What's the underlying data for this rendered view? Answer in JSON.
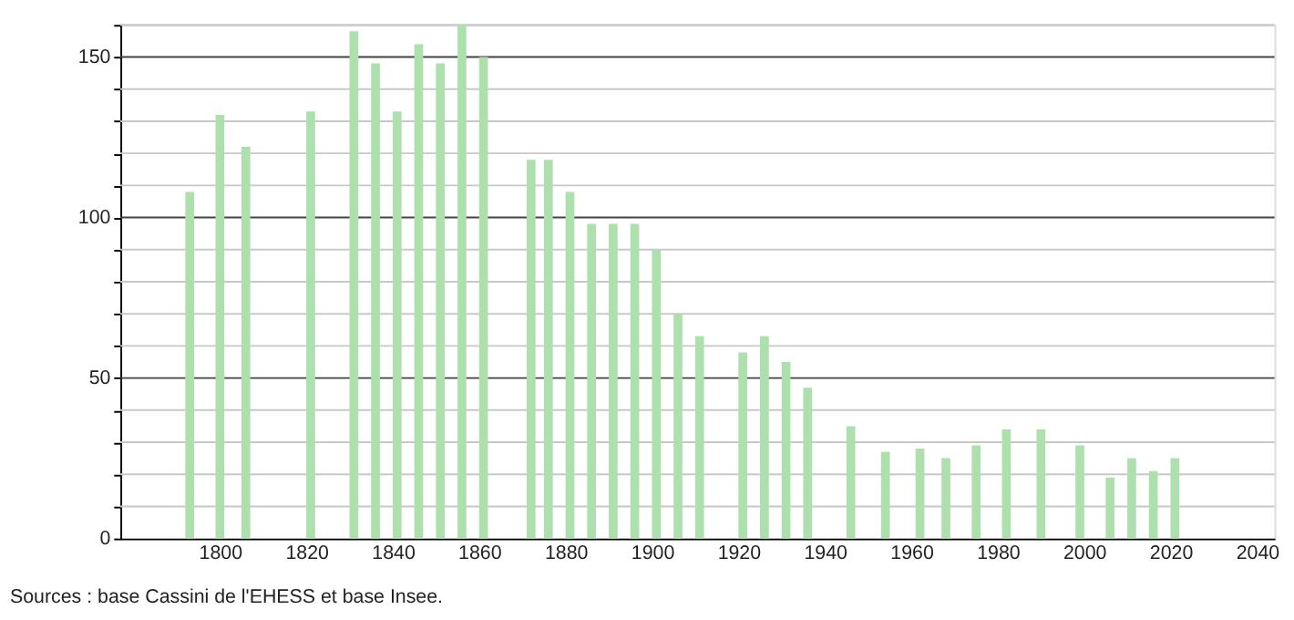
{
  "chart_data": {
    "type": "bar",
    "x": [
      1793,
      1800,
      1806,
      1821,
      1831,
      1836,
      1841,
      1846,
      1851,
      1856,
      1861,
      1872,
      1876,
      1881,
      1886,
      1891,
      1896,
      1901,
      1906,
      1911,
      1921,
      1926,
      1931,
      1936,
      1946,
      1954,
      1962,
      1968,
      1975,
      1982,
      1990,
      1999,
      2006,
      2011,
      2016,
      2021
    ],
    "values": [
      108,
      132,
      122,
      133,
      158,
      148,
      133,
      154,
      148,
      160,
      150,
      118,
      118,
      108,
      98,
      98,
      98,
      90,
      70,
      63,
      58,
      63,
      55,
      47,
      35,
      27,
      28,
      25,
      29,
      34,
      34,
      29,
      19,
      25,
      21,
      25
    ],
    "color": "#aee0ae",
    "xlim": [
      1779,
      2042
    ],
    "xticks": [
      1800,
      1820,
      1840,
      1860,
      1880,
      1900,
      1920,
      1940,
      1960,
      1980,
      2000,
      2020,
      2040
    ],
    "ylim": [
      0,
      160
    ],
    "yticks": [
      0,
      {
        "value": 10,
        "label": null
      },
      {
        "value": 20,
        "label": null
      },
      {
        "value": 30,
        "label": null
      },
      {
        "value": 40,
        "label": null
      },
      50,
      {
        "value": 60,
        "label": null
      },
      {
        "value": 70,
        "label": null
      },
      {
        "value": 80,
        "label": null
      },
      {
        "value": 90,
        "label": null
      },
      100,
      {
        "value": 110,
        "label": null
      },
      {
        "value": 120,
        "label": null
      },
      {
        "value": 130,
        "label": null
      },
      {
        "value": 140,
        "label": null
      },
      150,
      {
        "value": 160,
        "label": null
      }
    ],
    "grid": "y",
    "annotations": [
      "Sources : base Cassini de l'EHESS et base Insee."
    ]
  }
}
